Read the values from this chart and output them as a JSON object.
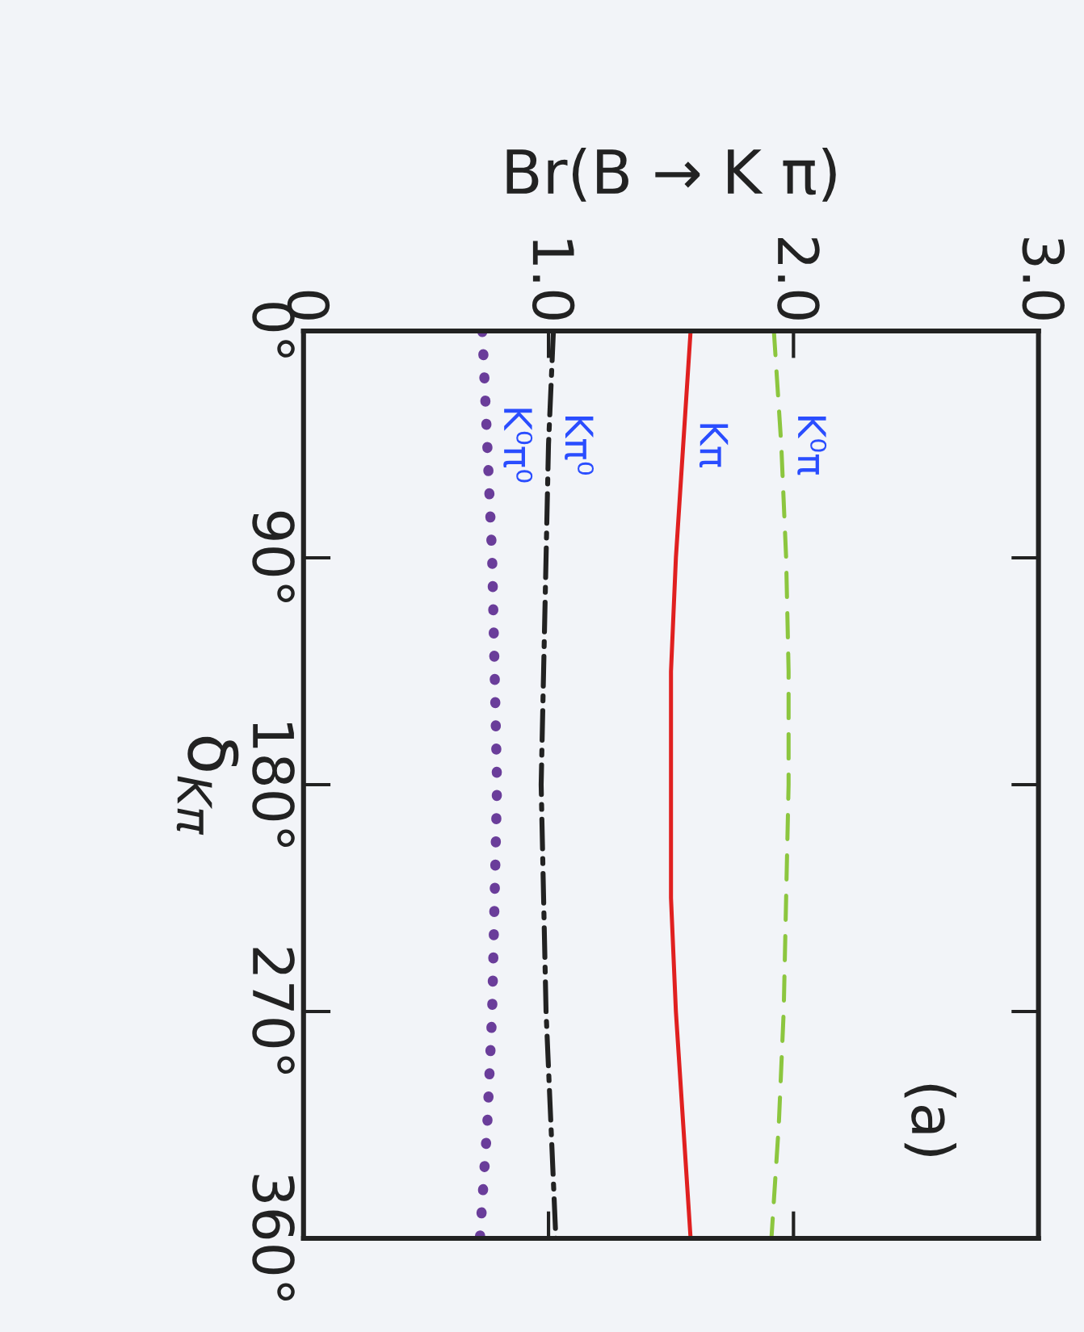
{
  "chart_data": {
    "type": "line",
    "orientation": "horizontal",
    "xlabel": "Br(B → K π)",
    "ylabel": "δ$_{Kπ}$",
    "xlim": [
      0,
      3
    ],
    "xticks": [
      0,
      {
        "value": 1,
        "label": "1.0"
      },
      {
        "value": 2,
        "label": "2.0"
      },
      {
        "value": 3,
        "label": "3.0"
      }
    ],
    "ylim": [
      360,
      0
    ],
    "yticks": [
      {
        "value": 0,
        "label": "0°"
      },
      {
        "value": 90,
        "label": "90°"
      },
      {
        "value": 180,
        "label": "180°"
      },
      {
        "value": 270,
        "label": "270°"
      },
      {
        "value": 360,
        "label": "360°"
      }
    ],
    "x": [
      0,
      45,
      90,
      135,
      180,
      225,
      270,
      315,
      360
    ],
    "series": [
      {
        "name": "K⁰π⁰",
        "color": "#6a3d9a",
        "line_style": "dotted",
        "values": [
          0.73,
          0.75,
          0.77,
          0.78,
          0.79,
          0.78,
          0.77,
          0.75,
          0.72
        ]
      },
      {
        "name": "Kπ⁰",
        "color": "#222222",
        "line_style": "dashdot",
        "values": [
          1.02,
          1.0,
          0.99,
          0.98,
          0.97,
          0.98,
          0.99,
          1.01,
          1.03
        ]
      },
      {
        "name": "Kπ",
        "color": "#e02020",
        "line_style": "solid",
        "values": [
          1.58,
          1.55,
          1.52,
          1.5,
          1.5,
          1.5,
          1.52,
          1.55,
          1.58
        ]
      },
      {
        "name": "K⁰π",
        "color": "#8cc63f",
        "line_style": "dashed",
        "values": [
          1.92,
          1.95,
          1.97,
          1.98,
          1.98,
          1.97,
          1.96,
          1.94,
          1.91
        ]
      }
    ],
    "annotations": [
      "(a)"
    ],
    "grid": false
  }
}
